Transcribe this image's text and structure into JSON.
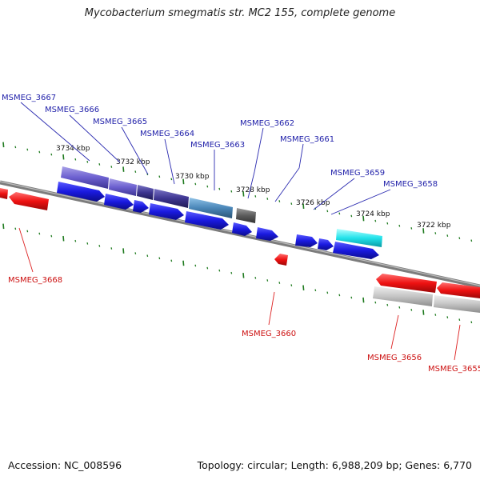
{
  "title": "Mycobacterium smegmatis str. MC2 155, complete genome",
  "accession": "Accession: NC_008596",
  "topology": "Topology: circular; Length: 6,988,209 bp; Genes: 6,770",
  "colors": {
    "backbone": "#8a8a8a",
    "tick": "#1e7a1e",
    "cds_forward": "#1a1ae0",
    "cds_reverse": "#ee1111",
    "forward_label": "#2222aa",
    "reverse_label": "#cc1111"
  },
  "scale_labels": [
    "3734 kbp",
    "3732 kbp",
    "3730 kbp",
    "3728 kbp",
    "3726 kbp",
    "3724 kbp",
    "3722 kbp"
  ],
  "forward_genes": [
    "MSMEG_3667",
    "MSMEG_3666",
    "MSMEG_3665",
    "MSMEG_3664",
    "MSMEG_3663",
    "MSMEG_3662",
    "MSMEG_3661",
    "MSMEG_3659",
    "MSMEG_3658"
  ],
  "reverse_genes": [
    "MSMEG_3668",
    "MSMEG_3660",
    "MSMEG_3656",
    "MSMEG_3655"
  ]
}
